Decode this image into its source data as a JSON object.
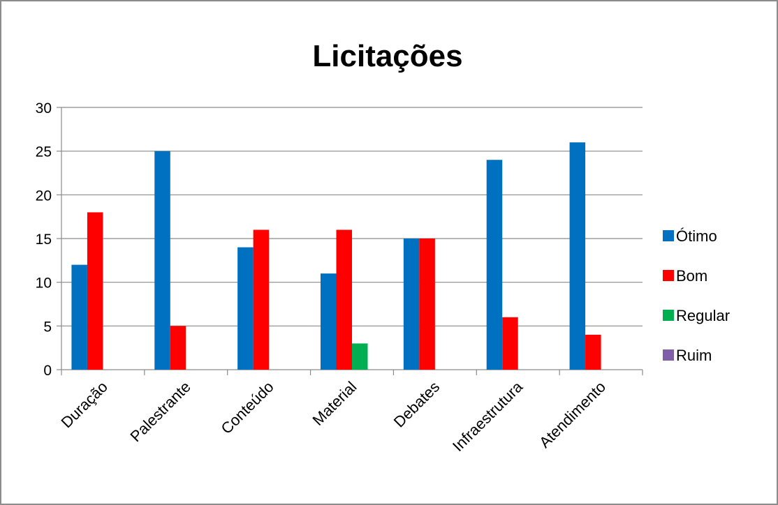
{
  "chart_data": {
    "type": "bar",
    "title": "Licitações",
    "xlabel": "",
    "ylabel": "",
    "ylim": [
      0,
      30
    ],
    "yticks": [
      0,
      5,
      10,
      15,
      20,
      25,
      30
    ],
    "grid": true,
    "legend": "right",
    "categories": [
      "Duração",
      "Palestrante",
      "Conteúdo",
      "Material",
      "Debates",
      "Infraestrutura",
      "Atendimento"
    ],
    "series": [
      {
        "name": "Ótimo",
        "color": "#0070c0",
        "values": [
          12,
          25,
          14,
          11,
          15,
          24,
          26
        ]
      },
      {
        "name": "Bom",
        "color": "#ff0000",
        "values": [
          18,
          5,
          16,
          16,
          15,
          6,
          4
        ]
      },
      {
        "name": "Regular",
        "color": "#00b050",
        "values": [
          0,
          0,
          0,
          3,
          0,
          0,
          0
        ]
      },
      {
        "name": "Ruim",
        "color": "#7f5fa8",
        "values": [
          0,
          0,
          0,
          0,
          0,
          0,
          0
        ]
      }
    ]
  }
}
